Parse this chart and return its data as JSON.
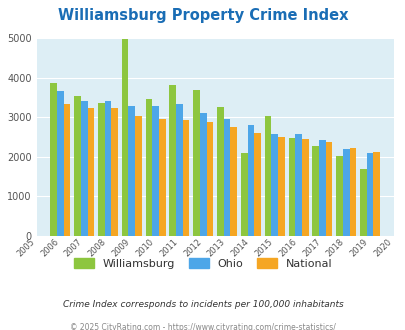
{
  "title": "Williamsburg Property Crime Index",
  "years": [
    2006,
    2007,
    2008,
    2009,
    2010,
    2011,
    2012,
    2013,
    2014,
    2015,
    2016,
    2017,
    2018,
    2019
  ],
  "williamsburg": [
    3850,
    3530,
    3350,
    4980,
    3450,
    3800,
    3680,
    3250,
    2100,
    3020,
    2470,
    2260,
    2030,
    1700
  ],
  "ohio": [
    3650,
    3420,
    3420,
    3280,
    3270,
    3340,
    3110,
    2960,
    2800,
    2570,
    2580,
    2430,
    2200,
    2100
  ],
  "national": [
    3340,
    3230,
    3220,
    3030,
    2960,
    2940,
    2890,
    2760,
    2610,
    2510,
    2460,
    2360,
    2210,
    2120
  ],
  "williamsburg_color": "#8dc63f",
  "ohio_color": "#4da6e8",
  "national_color": "#f5a623",
  "bg_color": "#ddeef5",
  "title_color": "#1a6db5",
  "ylim": [
    0,
    5000
  ],
  "yticks": [
    0,
    1000,
    2000,
    3000,
    4000,
    5000
  ],
  "xtick_years": [
    2005,
    2006,
    2007,
    2008,
    2009,
    2010,
    2011,
    2012,
    2013,
    2014,
    2015,
    2016,
    2017,
    2018,
    2019,
    2020
  ],
  "footnote1": "Crime Index corresponds to incidents per 100,000 inhabitants",
  "footnote2": "© 2025 CityRating.com - https://www.cityrating.com/crime-statistics/",
  "legend_labels": [
    "Williamsburg",
    "Ohio",
    "National"
  ]
}
